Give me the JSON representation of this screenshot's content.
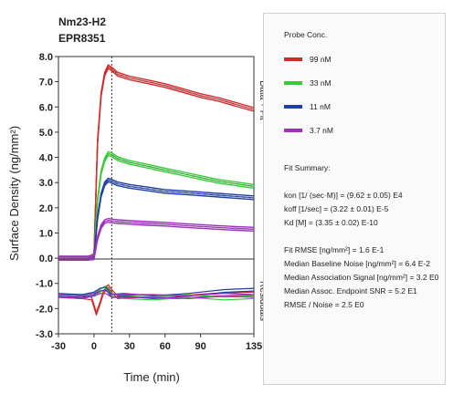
{
  "chart_data": {
    "type": "line",
    "title": "Nm23-H2",
    "subtitle": "EPR8351",
    "xlabel": "Time (min)",
    "ylabel": "Surface Density (ng/mm²)",
    "xlim": [
      -30,
      135
    ],
    "ylim": [
      -3.0,
      8.0
    ],
    "x_ticks": [
      "-30",
      "0",
      "30",
      "60",
      "90",
      "135"
    ],
    "y_ticks_upper": [
      "8.0",
      "7.0",
      "6.0",
      "5.0",
      "4.0",
      "3.0",
      "2.0",
      "1.0",
      "0.0"
    ],
    "y_ticks_lower": [
      "-1.0",
      "-2.0",
      "-3.0"
    ],
    "panel_labels": [
      "Data + Fit",
      "Residuals"
    ],
    "vertical_marker_x": 15,
    "legend": {
      "title": "Probe Conc.",
      "entries": [
        {
          "label": "99 nM",
          "color": "#d42a2a"
        },
        {
          "label": "33 nM",
          "color": "#35cc35"
        },
        {
          "label": "11 nM",
          "color": "#1f3fa8"
        },
        {
          "label": "3.7 nM",
          "color": "#a02cc0"
        }
      ]
    },
    "series": [
      {
        "name": "99 nM",
        "color": "#d42a2a",
        "x": [
          -30,
          -5,
          0,
          3,
          6,
          9,
          12,
          15,
          20,
          30,
          45,
          60,
          75,
          90,
          105,
          120,
          135
        ],
        "y": [
          0,
          0,
          0.1,
          4.6,
          6.5,
          7.3,
          7.6,
          7.5,
          7.3,
          7.15,
          7.0,
          6.85,
          6.65,
          6.45,
          6.3,
          6.1,
          5.9
        ]
      },
      {
        "name": "33 nM",
        "color": "#35cc35",
        "x": [
          -30,
          -5,
          0,
          3,
          6,
          9,
          12,
          15,
          20,
          30,
          45,
          60,
          75,
          90,
          105,
          120,
          135
        ],
        "y": [
          0,
          0,
          0.05,
          2.3,
          3.4,
          3.9,
          4.15,
          4.1,
          3.95,
          3.8,
          3.65,
          3.5,
          3.35,
          3.2,
          3.05,
          2.95,
          2.85
        ]
      },
      {
        "name": "11 nM",
        "color": "#1f3fa8",
        "x": [
          -30,
          -5,
          0,
          3,
          6,
          9,
          12,
          15,
          20,
          30,
          45,
          60,
          75,
          90,
          105,
          120,
          135
        ],
        "y": [
          0,
          0,
          0.02,
          1.6,
          2.5,
          2.95,
          3.1,
          3.05,
          2.95,
          2.85,
          2.75,
          2.65,
          2.6,
          2.55,
          2.5,
          2.45,
          2.4
        ]
      },
      {
        "name": "3.7 nM",
        "color": "#a02cc0",
        "x": [
          -30,
          -5,
          0,
          3,
          6,
          9,
          12,
          15,
          20,
          30,
          45,
          60,
          75,
          90,
          105,
          120,
          135
        ],
        "y": [
          0,
          0,
          0.02,
          0.8,
          1.25,
          1.45,
          1.5,
          1.48,
          1.45,
          1.42,
          1.38,
          1.35,
          1.3,
          1.26,
          1.22,
          1.18,
          1.15
        ]
      }
    ],
    "residuals": [
      {
        "name": "99 nM",
        "color": "#d42a2a",
        "x": [
          -30,
          -10,
          -2,
          0,
          2,
          5,
          8,
          12,
          15,
          20,
          40,
          70,
          100,
          135
        ],
        "y": [
          -1.5,
          -1.55,
          -1.6,
          -1.9,
          -2.2,
          -1.8,
          -1.35,
          -1.1,
          -1.3,
          -1.55,
          -1.5,
          -1.55,
          -1.45,
          -1.4
        ]
      },
      {
        "name": "33 nM",
        "color": "#35cc35",
        "x": [
          -30,
          -10,
          0,
          5,
          10,
          15,
          25,
          50,
          80,
          110,
          135
        ],
        "y": [
          -1.5,
          -1.5,
          -1.45,
          -1.3,
          -1.15,
          -1.45,
          -1.55,
          -1.6,
          -1.5,
          -1.6,
          -1.55
        ]
      },
      {
        "name": "11 nM",
        "color": "#1f3fa8",
        "x": [
          -30,
          -10,
          0,
          5,
          10,
          15,
          25,
          50,
          80,
          110,
          135
        ],
        "y": [
          -1.45,
          -1.5,
          -1.4,
          -1.25,
          -1.2,
          -1.5,
          -1.45,
          -1.55,
          -1.45,
          -1.3,
          -1.25
        ]
      },
      {
        "name": "3.7 nM",
        "color": "#a02cc0",
        "x": [
          -30,
          -10,
          0,
          5,
          10,
          15,
          25,
          50,
          80,
          110,
          135
        ],
        "y": [
          -1.5,
          -1.55,
          -1.45,
          -1.35,
          -1.35,
          -1.5,
          -1.5,
          -1.5,
          -1.55,
          -1.45,
          -1.5
        ]
      }
    ]
  },
  "fit_summary": {
    "heading": "Fit Summary:",
    "params": [
      "kon  [1/ (sec·M)]  =  (9.62 ± 0.05) E4",
      "koff  [1/sec]  =  (3.22 ± 0.01) E-5",
      "Kd  [M]  =  (3.35 ± 0.02) E-10"
    ],
    "stats": [
      "Fit RMSE [ng/mm²]  =  1.6 E-1",
      "Median Baseline Noise [ng/mm²]  =  6.4 E-2",
      "Median Association Signal [ng/mm²]  =  3.2 E0",
      "Median Assoc. Endpoint SNR  =  5.2 E1",
      "RMSE / Noise  =  2.5 E0"
    ]
  }
}
